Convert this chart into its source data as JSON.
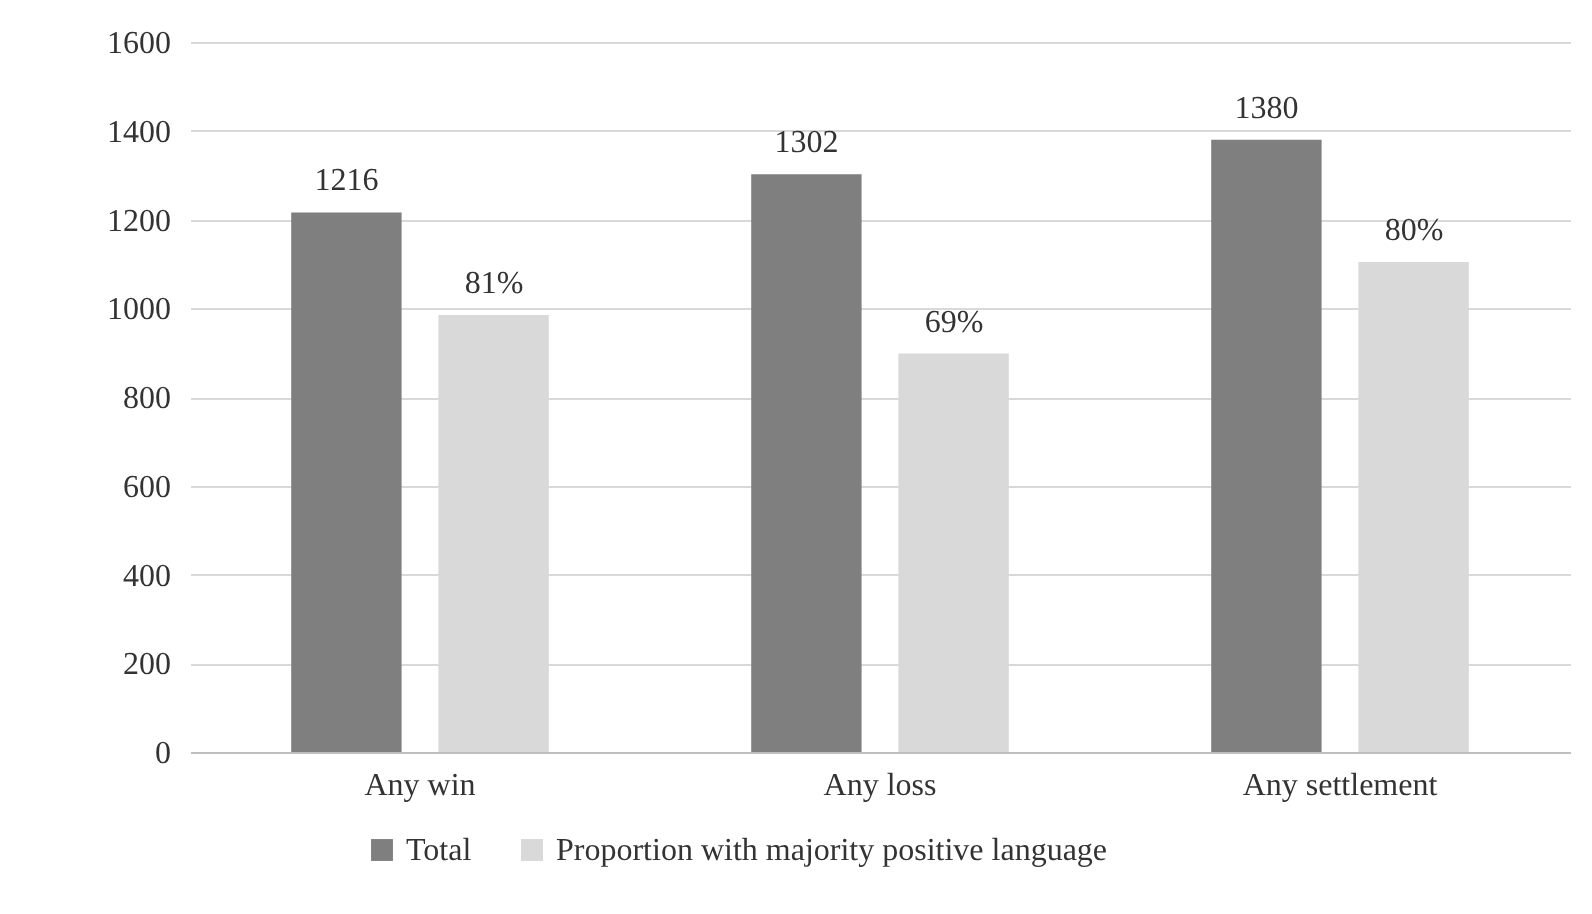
{
  "chart_data": {
    "type": "bar",
    "categories": [
      "Any win",
      "Any loss",
      "Any settlement"
    ],
    "series": [
      {
        "name": "Total",
        "color": "#7f7f7f",
        "values": [
          1216,
          1302,
          1380
        ],
        "value_labels": [
          "1216",
          "1302",
          "1380"
        ]
      },
      {
        "name": "Proportion with majority positive language",
        "color": "#d9d9d9",
        "values": [
          985,
          898,
          1104
        ]
      }
    ],
    "annotations": [
      "81%",
      "69%",
      "80%"
    ],
    "ylim": [
      0,
      1600
    ],
    "yticks": [
      0,
      200,
      400,
      600,
      800,
      1000,
      1200,
      1400,
      1600
    ],
    "grid": "y",
    "legend": "bottom"
  }
}
